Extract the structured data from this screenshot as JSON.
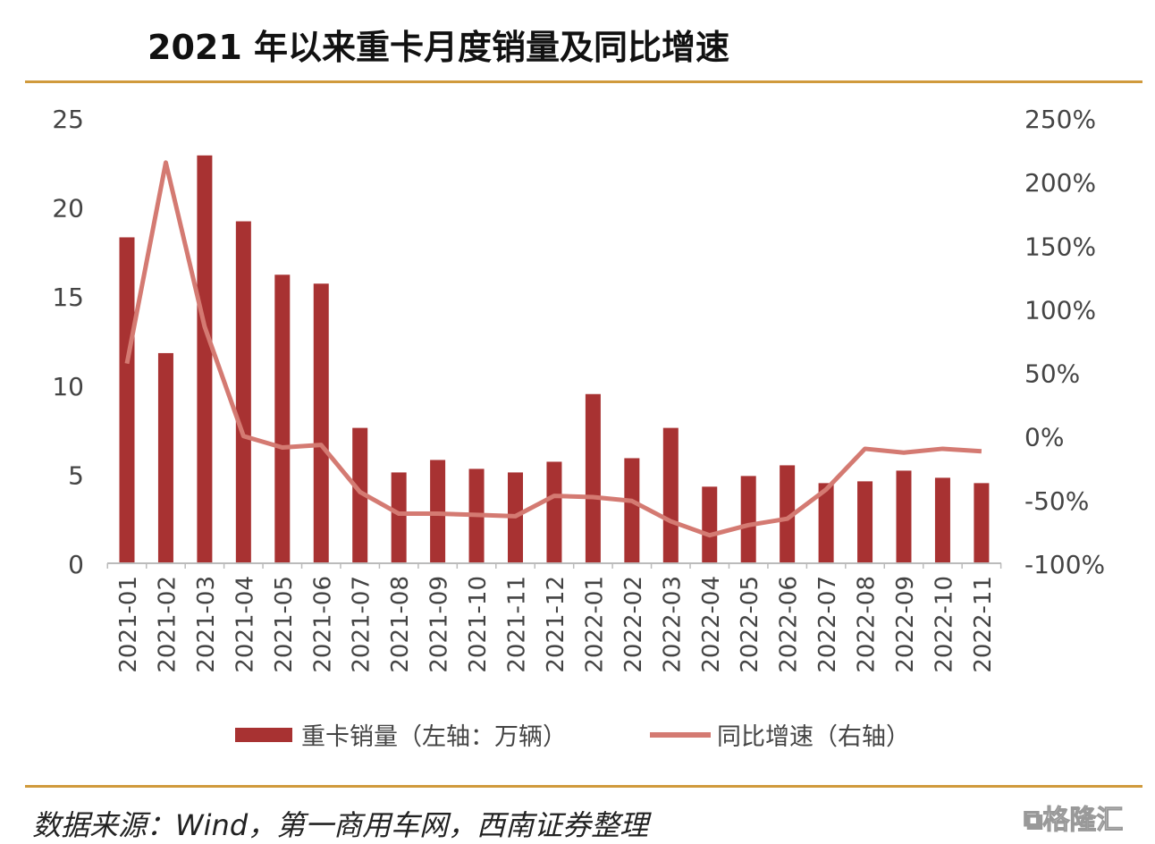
{
  "chart_data": {
    "type": "bar+line",
    "title": "2021 年以来重卡月度销量及同比增速",
    "categories": [
      "2021-01",
      "2021-02",
      "2021-03",
      "2021-04",
      "2021-05",
      "2021-06",
      "2021-07",
      "2021-08",
      "2021-09",
      "2021-10",
      "2021-11",
      "2021-12",
      "2022-01",
      "2022-02",
      "2022-03",
      "2022-04",
      "2022-05",
      "2022-06",
      "2022-07",
      "2022-08",
      "2022-09",
      "2022-10",
      "2022-11"
    ],
    "series": [
      {
        "name": "重卡销量（左轴：万辆）",
        "type": "bar",
        "axis": "left",
        "color": "#a83232",
        "values": [
          18.3,
          11.8,
          22.9,
          19.2,
          16.2,
          15.7,
          7.6,
          5.1,
          5.8,
          5.3,
          5.1,
          5.7,
          9.5,
          5.9,
          7.6,
          4.3,
          4.9,
          5.5,
          4.5,
          4.6,
          5.2,
          4.8,
          4.5
        ]
      },
      {
        "name": "同比增速（右轴）",
        "type": "line",
        "axis": "right",
        "color": "#d47a72",
        "values": [
          57,
          215,
          86,
          0,
          -9,
          -7,
          -44,
          -61,
          -61,
          -62,
          -63,
          -47,
          -48,
          -51,
          -67,
          -78,
          -70,
          -65,
          -42,
          -10,
          -13,
          -10,
          -12
        ]
      }
    ],
    "ylim_left": [
      0,
      25
    ],
    "yticks_left": [
      "0",
      "5",
      "10",
      "15",
      "20",
      "25"
    ],
    "ylim_right": [
      -100,
      250
    ],
    "yticks_right": [
      "-100%",
      "-50%",
      "0%",
      "50%",
      "100%",
      "150%",
      "200%",
      "250%"
    ],
    "legend_position": "bottom",
    "grid": false
  },
  "source": "数据来源：Wind，第一商用车网，西南证券整理",
  "watermark": "格隆汇"
}
